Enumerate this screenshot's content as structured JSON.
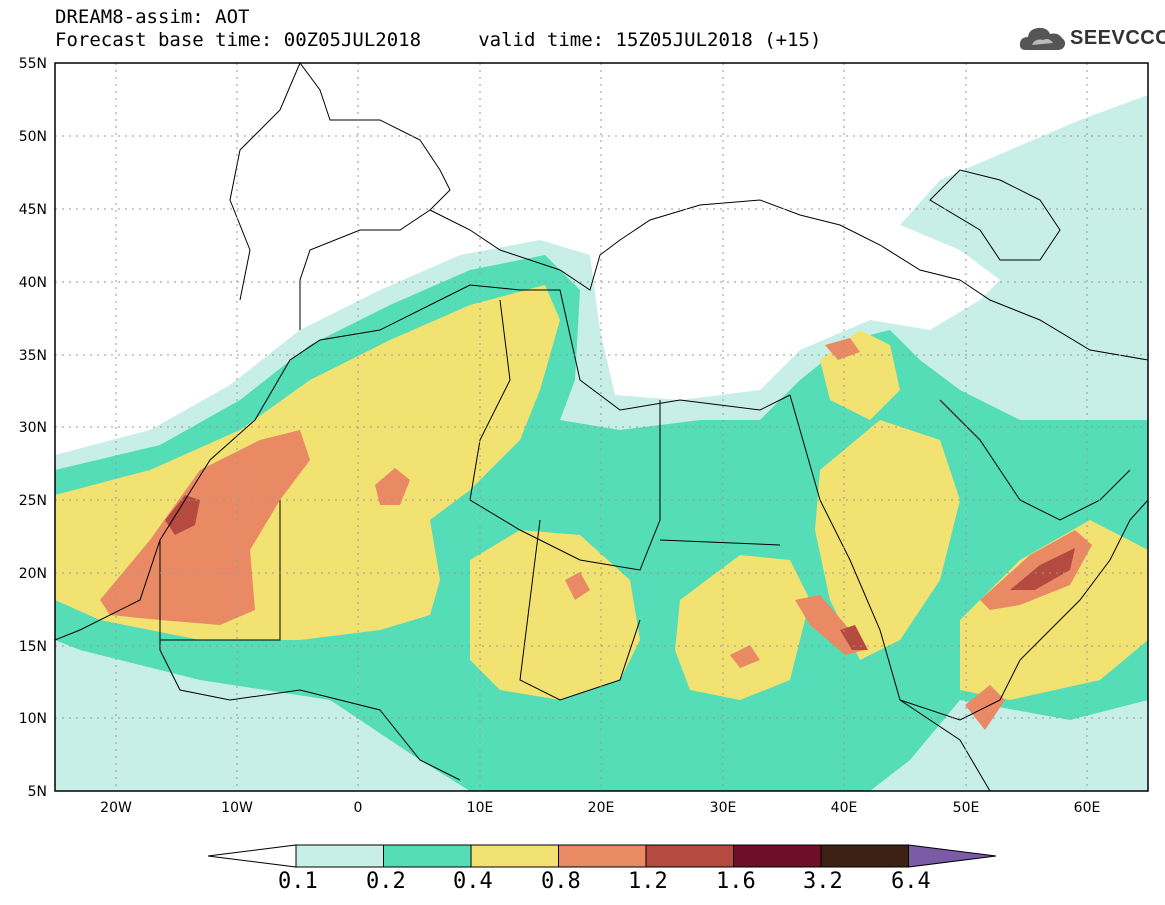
{
  "header": {
    "line1": "DREAM8-assim: AOT",
    "line2": "Forecast base time: 00Z05JUL2018     valid time: 15Z05JUL2018 (+15)"
  },
  "logo": {
    "text": "SEEVCCC",
    "icon": "cloud-icon"
  },
  "map": {
    "type": "contour-map",
    "variable": "AOT",
    "lat_range": [
      5,
      55
    ],
    "lon_range": [
      -25,
      65
    ],
    "lat_ticks": [
      "55N",
      "50N",
      "45N",
      "40N",
      "35N",
      "30N",
      "25N",
      "20N",
      "15N",
      "10N",
      "5N"
    ],
    "lon_ticks": [
      "20W",
      "10W",
      "0",
      "10E",
      "20E",
      "30E",
      "40E",
      "50E",
      "60E"
    ]
  },
  "colorbar": {
    "levels": [
      "0.1",
      "0.2",
      "0.4",
      "0.8",
      "1.2",
      "1.6",
      "3.2",
      "6.4"
    ],
    "colors": [
      "#ffffff",
      "#c8eee8",
      "#55ddb8",
      "#f2e272",
      "#e98a65",
      "#b44a40",
      "#6e0f28",
      "#3d2213",
      "#7b5aa6"
    ]
  }
}
